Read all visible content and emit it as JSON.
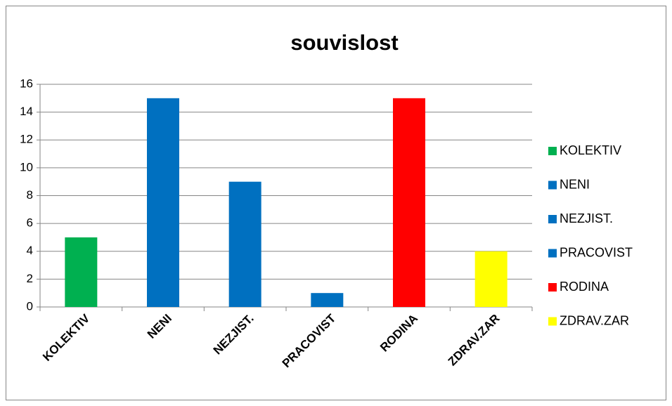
{
  "chart_data": {
    "type": "bar",
    "title": "souvislost",
    "categories": [
      "KOLEKTIV",
      "NENI",
      "NEZJIST.",
      "PRACOVIST",
      "RODINA",
      "ZDRAV.ZAR"
    ],
    "values": [
      5,
      15,
      9,
      1,
      15,
      4
    ],
    "colors": [
      "#00b050",
      "#0070c0",
      "#0070c0",
      "#0070c0",
      "#ff0000",
      "#ffff00"
    ],
    "ylim": [
      0,
      16
    ],
    "yticks": [
      0,
      2,
      4,
      6,
      8,
      10,
      12,
      14,
      16
    ],
    "grid": true,
    "legend": "right"
  }
}
